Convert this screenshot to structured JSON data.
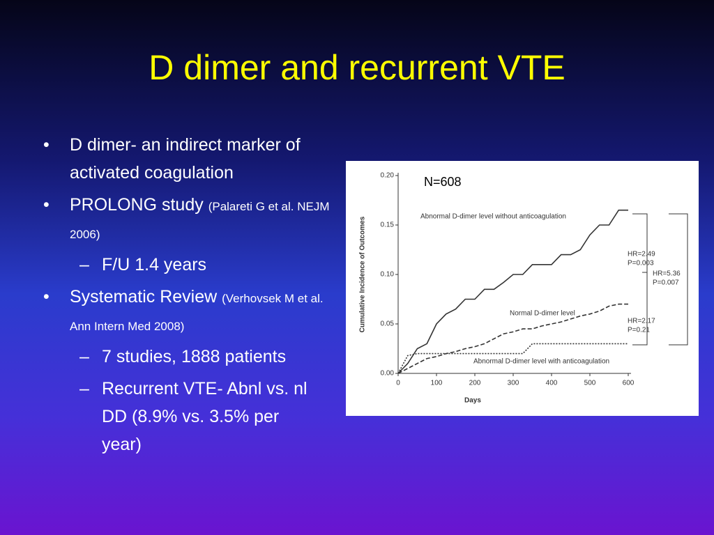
{
  "slide": {
    "title": "D dimer and recurrent VTE",
    "bullets": [
      {
        "text": "D dimer- an indirect marker of activated coagulation"
      },
      {
        "text": "PROLONG study",
        "cite": "(Palareti G et al. NEJM 2006)",
        "sub": [
          "F/U 1.4 years"
        ]
      },
      {
        "text": "Systematic Review",
        "cite": "(Verhovsek M et al. Ann Intern Med 2008)",
        "sub": [
          "7 studies, 1888 patients",
          "Recurrent VTE- Abnl vs. nl DD (8.9% vs. 3.5% per year)"
        ]
      }
    ]
  },
  "chart_data": {
    "type": "line",
    "note": "N=608",
    "x_label": "Days",
    "y_label": "Cumulative Incidence of Outcomes",
    "x": [
      0,
      25,
      50,
      75,
      100,
      125,
      150,
      175,
      200,
      225,
      250,
      275,
      300,
      325,
      350,
      375,
      400,
      425,
      450,
      475,
      500,
      525,
      550,
      575,
      600
    ],
    "series": [
      {
        "name": "Abnormal D-dimer level without anticoagulation",
        "color": "#333333",
        "line_style": "solid",
        "values": [
          0,
          0.01,
          0.025,
          0.03,
          0.05,
          0.06,
          0.065,
          0.075,
          0.075,
          0.085,
          0.085,
          0.092,
          0.1,
          0.1,
          0.11,
          0.11,
          0.11,
          0.12,
          0.12,
          0.125,
          0.14,
          0.15,
          0.15,
          0.165,
          0.165
        ]
      },
      {
        "name": "Normal D-dimer level",
        "color": "#333333",
        "line_style": "dashed",
        "values": [
          0,
          0.005,
          0.01,
          0.015,
          0.017,
          0.02,
          0.022,
          0.025,
          0.027,
          0.03,
          0.035,
          0.04,
          0.042,
          0.045,
          0.045,
          0.048,
          0.05,
          0.052,
          0.055,
          0.058,
          0.06,
          0.063,
          0.068,
          0.07,
          0.07
        ]
      },
      {
        "name": "Abnormal D-dimer level with anticoagulation",
        "color": "#333333",
        "line_style": "dotted",
        "values": [
          0,
          0.018,
          0.02,
          0.02,
          0.02,
          0.02,
          0.02,
          0.02,
          0.02,
          0.02,
          0.02,
          0.02,
          0.02,
          0.02,
          0.03,
          0.03,
          0.03,
          0.03,
          0.03,
          0.03,
          0.03,
          0.03,
          0.03,
          0.03,
          0.03
        ]
      }
    ],
    "annotations": [
      "HR=2.49",
      "P=0.003",
      "HR=5.36",
      "P=0.007",
      "HR=2.17",
      "P=0.21"
    ],
    "xlim": [
      0,
      600
    ],
    "xticks": [
      0,
      100,
      200,
      300,
      400,
      500,
      600
    ],
    "ylim": [
      0,
      0.2
    ],
    "yticks": [
      {
        "value": 0,
        "label": "0.00"
      },
      {
        "value": 0.05,
        "label": "0.05"
      },
      {
        "value": 0.1,
        "label": "0.10"
      },
      {
        "value": 0.15,
        "label": "0.15"
      },
      {
        "value": 0.2,
        "label": "0.20"
      }
    ]
  }
}
